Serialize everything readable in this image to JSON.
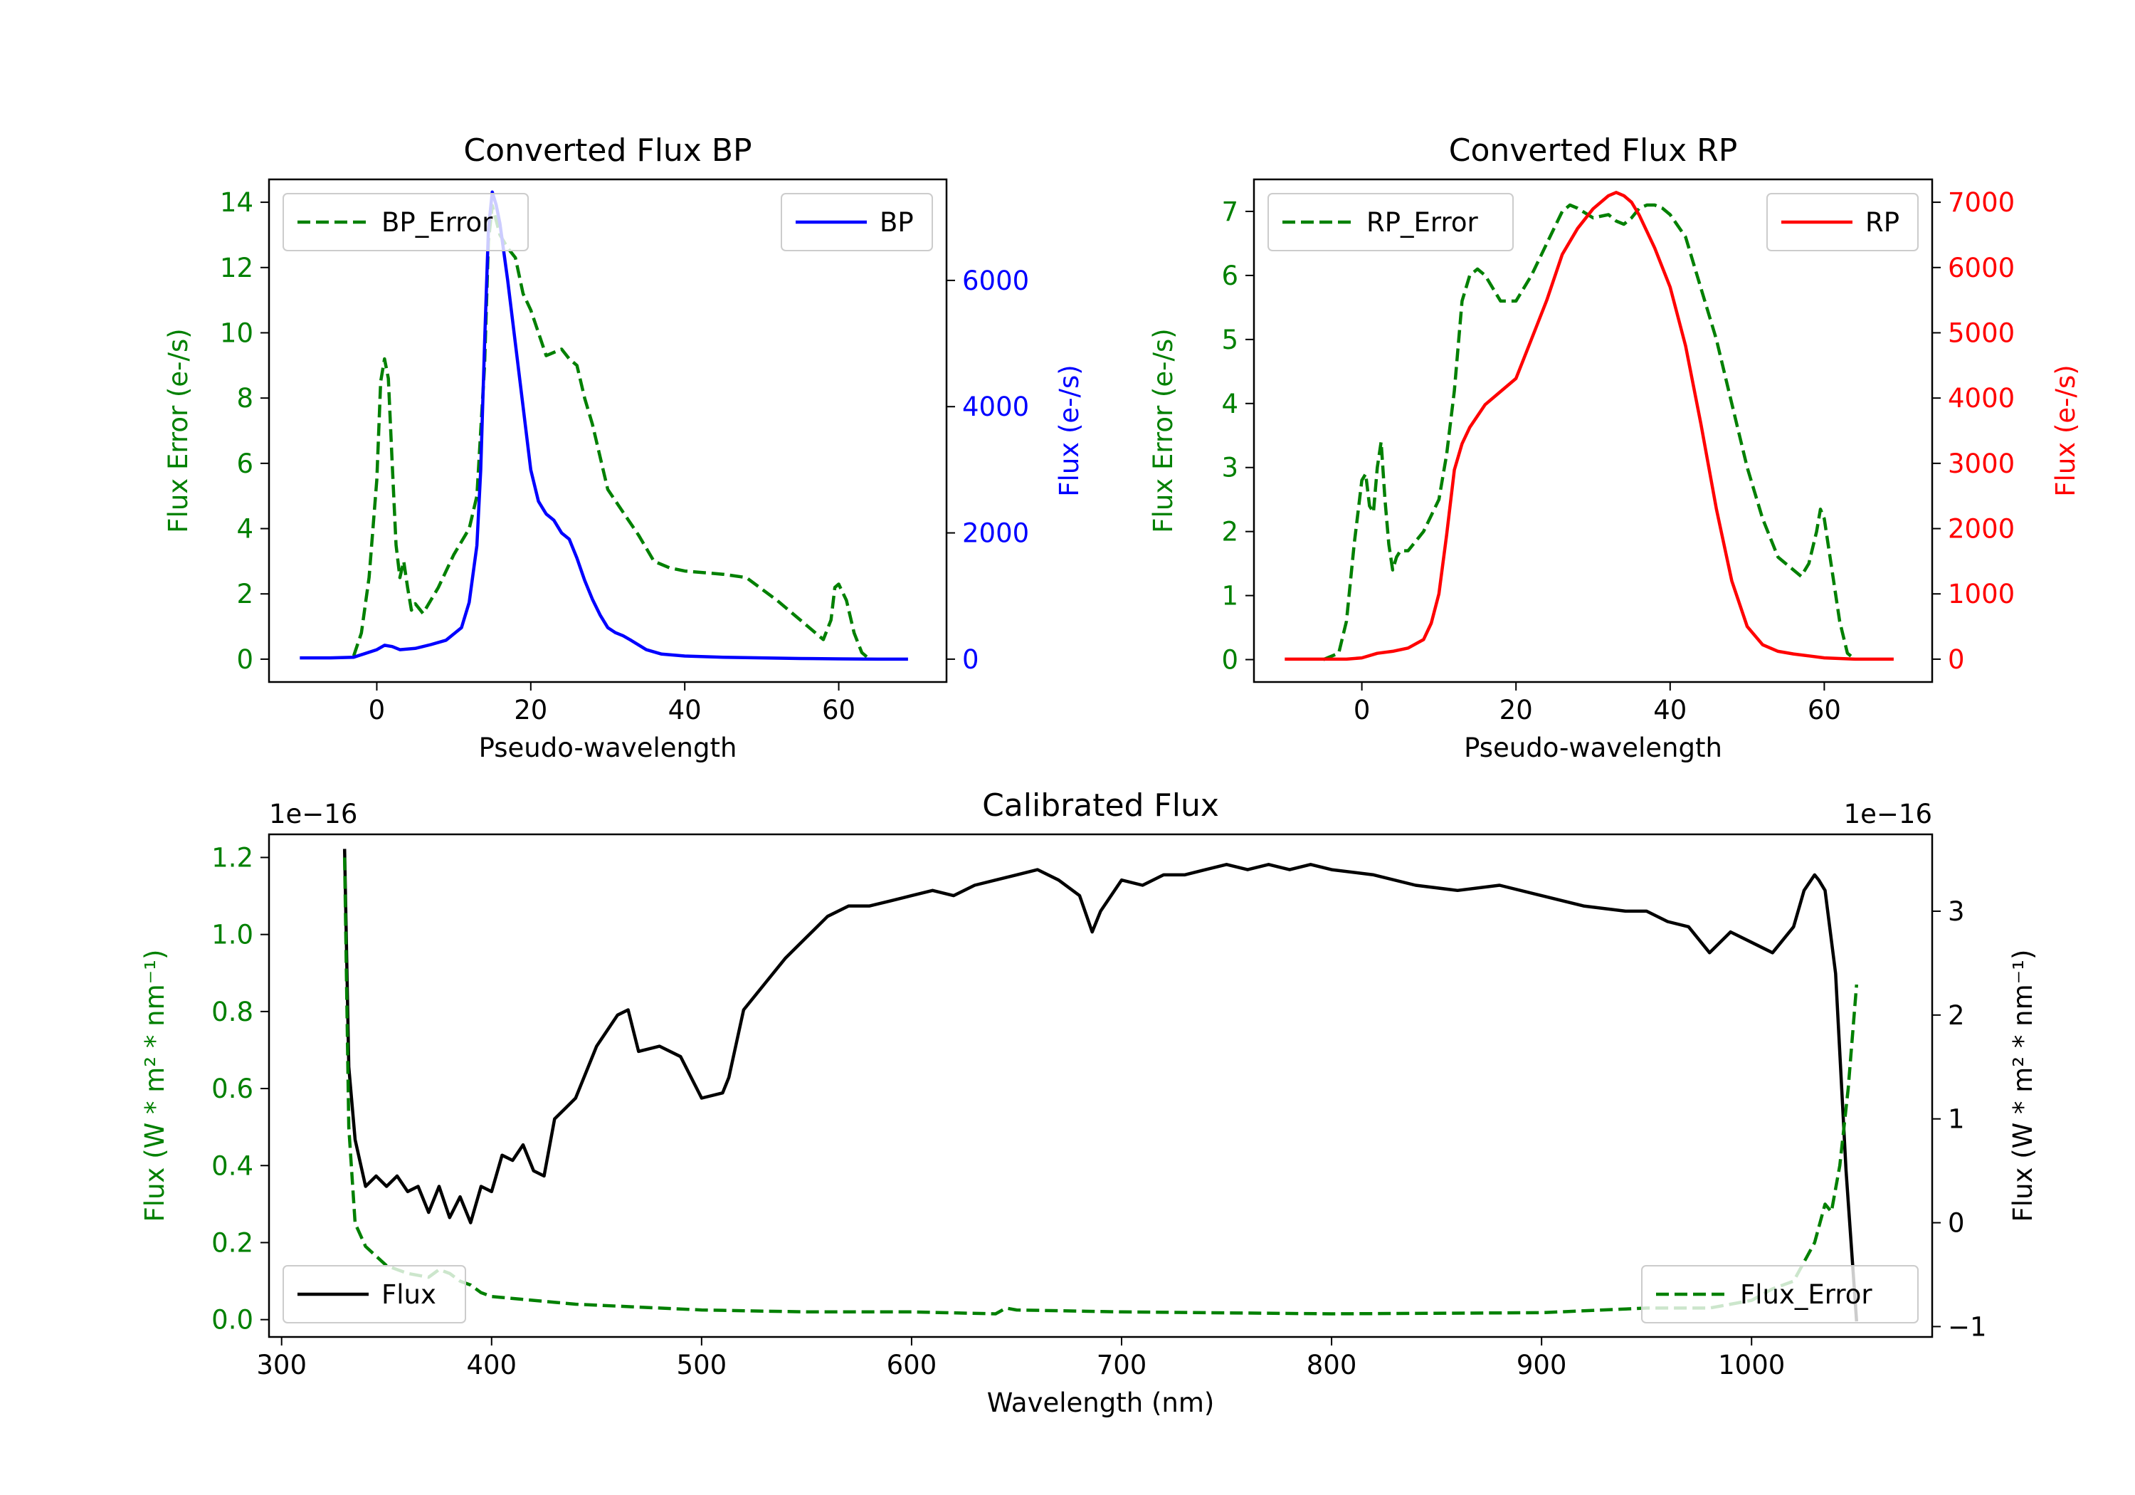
{
  "chart_data": [
    {
      "id": "bp",
      "type": "line",
      "title": "Converted Flux BP",
      "xlabel": "Pseudo-wavelength",
      "ylabel_left": "Flux Error (e-/s)",
      "ylabel_right": "Flux (e-/s)",
      "xlim": [
        -14,
        74
      ],
      "ylim_left": [
        -0.7,
        14.7
      ],
      "ylim_right": [
        -362,
        7600
      ],
      "xticks": [
        0,
        20,
        40,
        60
      ],
      "yticks_left": [
        0,
        2,
        4,
        6,
        8,
        10,
        12,
        14
      ],
      "yticks_right": [
        0,
        2000,
        4000,
        6000
      ],
      "left_axis_color": "#008000",
      "right_axis_color": "#0000ff",
      "series": [
        {
          "name": "BP_Error",
          "axis": "left",
          "color": "#008000",
          "style": "dashed",
          "x": [
            -3,
            -2,
            -1,
            0,
            0.5,
            1,
            1.5,
            2,
            2.5,
            3,
            3.5,
            4,
            4.5,
            5,
            6,
            7,
            8,
            10,
            12,
            13,
            14,
            14.5,
            15,
            16,
            17,
            18,
            19,
            20,
            22,
            23,
            24,
            25,
            26,
            27,
            28,
            30,
            32,
            34,
            36,
            38,
            40,
            45,
            48,
            52,
            55,
            57,
            58,
            59,
            59.5,
            60,
            61,
            62,
            63,
            64
          ],
          "y": [
            0.1,
            0.8,
            2.5,
            5.5,
            8.5,
            9.2,
            8.6,
            6.0,
            3.5,
            2.5,
            3.0,
            2.2,
            1.5,
            1.7,
            1.4,
            1.8,
            2.2,
            3.2,
            4.0,
            5.0,
            9.0,
            12.8,
            13.9,
            13.0,
            12.6,
            12.3,
            11.2,
            10.7,
            9.3,
            9.4,
            9.5,
            9.2,
            9.0,
            8.0,
            7.2,
            5.2,
            4.5,
            3.8,
            3.0,
            2.8,
            2.7,
            2.6,
            2.5,
            1.8,
            1.2,
            0.8,
            0.6,
            1.2,
            2.2,
            2.3,
            1.8,
            0.8,
            0.2,
            0.0
          ]
        },
        {
          "name": "BP",
          "axis": "right",
          "color": "#0000ff",
          "style": "solid",
          "x": [
            -10,
            -6,
            -3,
            0,
            1,
            2,
            3,
            5,
            7,
            9,
            11,
            12,
            13,
            13.5,
            14,
            14.5,
            15,
            15.5,
            16,
            17,
            18,
            19,
            20,
            21,
            22,
            23,
            24,
            25,
            26,
            27,
            28,
            29,
            30,
            31,
            32,
            33,
            35,
            37,
            40,
            45,
            50,
            55,
            60,
            65,
            69
          ],
          "y": [
            20,
            20,
            30,
            150,
            220,
            200,
            150,
            170,
            230,
            300,
            500,
            900,
            1800,
            3000,
            5000,
            6800,
            7400,
            7200,
            6900,
            6000,
            5000,
            4000,
            3000,
            2500,
            2300,
            2200,
            2000,
            1900,
            1600,
            1250,
            950,
            700,
            500,
            420,
            370,
            300,
            150,
            80,
            50,
            30,
            20,
            10,
            5,
            0,
            0
          ]
        }
      ],
      "legend": [
        {
          "label": "BP_Error",
          "position": "upper-left"
        },
        {
          "label": "BP",
          "position": "upper-right"
        }
      ]
    },
    {
      "id": "rp",
      "type": "line",
      "title": "Converted Flux RP",
      "xlabel": "Pseudo-wavelength",
      "ylabel_left": "Flux Error (e-/s)",
      "ylabel_right": "Flux (e-/s)",
      "xlim": [
        -14,
        74
      ],
      "ylim_left": [
        -0.35,
        7.5
      ],
      "ylim_right": [
        -350,
        7350
      ],
      "xticks": [
        0,
        20,
        40,
        60
      ],
      "yticks_left": [
        0,
        1,
        2,
        3,
        4,
        5,
        6,
        7
      ],
      "yticks_right": [
        0,
        1000,
        2000,
        3000,
        4000,
        5000,
        6000,
        7000
      ],
      "left_axis_color": "#008000",
      "right_axis_color": "#ff0000",
      "series": [
        {
          "name": "RP_Error",
          "axis": "left",
          "color": "#008000",
          "style": "dashed",
          "x": [
            -5,
            -3,
            -2,
            -1,
            0,
            0.5,
            1,
            1.5,
            2,
            2.5,
            3,
            3.5,
            4,
            4.5,
            5,
            6,
            8,
            10,
            11,
            12,
            13,
            14,
            15,
            16,
            18,
            20,
            22,
            24,
            26,
            27,
            28,
            30,
            32,
            33,
            34,
            35,
            36,
            37,
            38,
            39,
            40,
            42,
            44,
            46,
            48,
            50,
            52,
            54,
            55,
            56,
            57,
            58,
            59,
            59.5,
            60,
            61,
            62,
            63,
            64
          ],
          "y": [
            0,
            0.1,
            0.6,
            1.8,
            2.8,
            2.9,
            2.4,
            2.3,
            3.0,
            3.4,
            2.5,
            1.8,
            1.4,
            1.6,
            1.7,
            1.7,
            2.0,
            2.5,
            3.2,
            4.2,
            5.6,
            6.0,
            6.1,
            6.0,
            5.6,
            5.6,
            6.0,
            6.5,
            7.0,
            7.1,
            7.05,
            6.9,
            6.95,
            6.85,
            6.8,
            6.9,
            7.05,
            7.1,
            7.1,
            7.05,
            6.95,
            6.6,
            5.8,
            5.0,
            4.0,
            3.0,
            2.2,
            1.6,
            1.5,
            1.4,
            1.3,
            1.5,
            2.0,
            2.35,
            2.2,
            1.4,
            0.6,
            0.1,
            0
          ]
        },
        {
          "name": "RP",
          "axis": "right",
          "color": "#ff0000",
          "style": "solid",
          "x": [
            -10,
            -5,
            -2,
            0,
            2,
            4,
            6,
            8,
            9,
            10,
            11,
            12,
            13,
            14,
            16,
            18,
            20,
            22,
            24,
            26,
            28,
            30,
            32,
            33,
            34,
            35,
            36,
            38,
            40,
            42,
            44,
            46,
            48,
            50,
            52,
            54,
            56,
            58,
            60,
            64,
            69
          ],
          "y": [
            0,
            0,
            0,
            20,
            90,
            120,
            170,
            300,
            550,
            1000,
            1900,
            2900,
            3300,
            3550,
            3900,
            4100,
            4300,
            4900,
            5500,
            6200,
            6600,
            6900,
            7100,
            7150,
            7100,
            7000,
            6800,
            6300,
            5700,
            4800,
            3600,
            2300,
            1200,
            500,
            220,
            120,
            80,
            50,
            20,
            0,
            0
          ]
        }
      ],
      "legend": [
        {
          "label": "RP_Error",
          "position": "upper-left"
        },
        {
          "label": "RP",
          "position": "upper-right"
        }
      ]
    },
    {
      "id": "cal",
      "type": "line",
      "title": "Calibrated Flux",
      "xlabel": "Wavelength (nm)",
      "ylabel_left": "Flux (W * m² * nm⁻¹)",
      "ylabel_right": "Flux (W * m² * nm⁻¹)",
      "offset_left": "1e−16",
      "offset_right": "1e−16",
      "xlim": [
        294,
        1086
      ],
      "ylim_left": [
        -0.045,
        1.26
      ],
      "ylim_right": [
        -1.1,
        3.74
      ],
      "xticks": [
        300,
        400,
        500,
        600,
        700,
        800,
        900,
        1000
      ],
      "yticks_left": [
        0.0,
        0.2,
        0.4,
        0.6,
        0.8,
        1.0,
        1.2
      ],
      "yticks_right": [
        -1,
        0,
        1,
        2,
        3
      ],
      "left_axis_color": "#008000",
      "right_axis_color": "#000000",
      "series": [
        {
          "name": "Flux",
          "axis": "right",
          "color": "#000000",
          "style": "solid",
          "x": [
            330,
            332,
            335,
            340,
            345,
            350,
            355,
            360,
            365,
            370,
            375,
            380,
            385,
            390,
            395,
            400,
            405,
            410,
            415,
            420,
            425,
            430,
            435,
            440,
            450,
            460,
            465,
            470,
            480,
            490,
            500,
            510,
            513,
            520,
            530,
            540,
            550,
            560,
            570,
            580,
            590,
            600,
            610,
            620,
            630,
            640,
            650,
            660,
            670,
            680,
            686,
            690,
            700,
            710,
            720,
            730,
            740,
            750,
            760,
            770,
            780,
            790,
            800,
            820,
            840,
            860,
            880,
            900,
            920,
            940,
            950,
            960,
            970,
            980,
            990,
            1000,
            1010,
            1020,
            1025,
            1030,
            1032,
            1035,
            1040,
            1045,
            1050
          ],
          "y": [
            3.6,
            1.5,
            0.8,
            0.35,
            0.45,
            0.35,
            0.45,
            0.3,
            0.35,
            0.1,
            0.35,
            0.05,
            0.25,
            0.0,
            0.35,
            0.3,
            0.65,
            0.6,
            0.75,
            0.5,
            0.45,
            1.0,
            1.1,
            1.2,
            1.7,
            2.0,
            2.05,
            1.65,
            1.7,
            1.6,
            1.2,
            1.25,
            1.4,
            2.05,
            2.3,
            2.55,
            2.75,
            2.95,
            3.05,
            3.05,
            3.1,
            3.15,
            3.2,
            3.15,
            3.25,
            3.3,
            3.35,
            3.4,
            3.3,
            3.15,
            2.8,
            3.0,
            3.3,
            3.25,
            3.35,
            3.35,
            3.4,
            3.45,
            3.4,
            3.45,
            3.4,
            3.45,
            3.4,
            3.35,
            3.25,
            3.2,
            3.25,
            3.15,
            3.05,
            3.0,
            3.0,
            2.9,
            2.85,
            2.6,
            2.8,
            2.7,
            2.6,
            2.85,
            3.2,
            3.35,
            3.3,
            3.2,
            2.4,
            0.5,
            -0.95
          ]
        },
        {
          "name": "Flux_Error",
          "axis": "left",
          "color": "#008000",
          "style": "dashed",
          "x": [
            330,
            332,
            335,
            340,
            350,
            360,
            370,
            375,
            380,
            385,
            390,
            395,
            400,
            420,
            440,
            460,
            480,
            500,
            550,
            600,
            640,
            645,
            650,
            700,
            800,
            900,
            950,
            980,
            1000,
            1010,
            1020,
            1030,
            1035,
            1038,
            1042,
            1046,
            1050
          ],
          "y": [
            1.2,
            0.5,
            0.25,
            0.19,
            0.14,
            0.12,
            0.11,
            0.13,
            0.12,
            0.1,
            0.09,
            0.07,
            0.06,
            0.05,
            0.04,
            0.035,
            0.03,
            0.025,
            0.02,
            0.02,
            0.015,
            0.03,
            0.025,
            0.02,
            0.015,
            0.018,
            0.03,
            0.03,
            0.05,
            0.08,
            0.1,
            0.2,
            0.3,
            0.28,
            0.4,
            0.6,
            0.87
          ]
        }
      ],
      "legend": [
        {
          "label": "Flux",
          "position": "lower-left"
        },
        {
          "label": "Flux_Error",
          "position": "lower-right"
        }
      ]
    }
  ]
}
